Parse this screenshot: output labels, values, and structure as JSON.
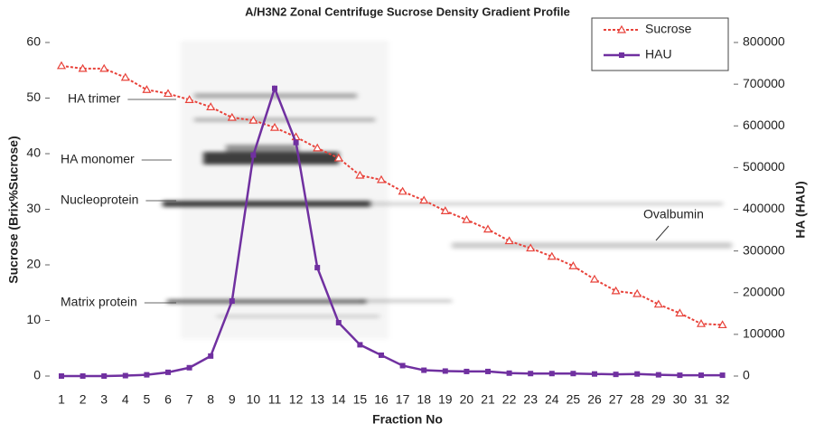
{
  "chart_data": {
    "type": "line",
    "title": "A/H3N2 Zonal Centrifuge Sucrose Density Gradient Profile",
    "x_label": "Fraction No",
    "y_label": "Sucrose (Brix%Sucrose)",
    "y2_label": "HA (HAU)",
    "categories": [
      "1",
      "2",
      "3",
      "4",
      "5",
      "6",
      "7",
      "8",
      "9",
      "10",
      "11",
      "12",
      "13",
      "14",
      "15",
      "16",
      "17",
      "18",
      "19",
      "20",
      "21",
      "22",
      "23",
      "24",
      "25",
      "26",
      "27",
      "28",
      "29",
      "30",
      "31",
      "32"
    ],
    "ylim": [
      0,
      60
    ],
    "yticks": [
      0,
      10,
      20,
      30,
      40,
      50,
      60
    ],
    "y2lim": [
      0,
      800000
    ],
    "y2ticks": [
      0,
      100000,
      200000,
      300000,
      400000,
      500000,
      600000,
      700000,
      800000
    ],
    "legend": "top-right",
    "series": [
      {
        "name": "Sucrose",
        "color": "#e8423a",
        "values": [
          55.8,
          55.3,
          55.3,
          53.7,
          51.5,
          50.8,
          49.7,
          48.4,
          46.5,
          46.0,
          44.7,
          43.0,
          41.0,
          39.2,
          36.1,
          35.3,
          33.2,
          31.6,
          29.7,
          28.1,
          26.4,
          24.3,
          23.0,
          21.5,
          19.8,
          17.4,
          15.3,
          14.8,
          12.9,
          11.3,
          9.4,
          9.2
        ]
      },
      {
        "name": "HAU",
        "color": "#7030a0",
        "axis": "y2",
        "values": [
          0,
          0,
          0,
          1000,
          3000,
          9000,
          20000,
          48000,
          180000,
          530000,
          690000,
          560000,
          260000,
          128000,
          75000,
          50000,
          25000,
          14000,
          12000,
          11000,
          11000,
          7000,
          6000,
          6000,
          6000,
          5000,
          4000,
          5000,
          3000,
          2000,
          2000,
          2000
        ]
      }
    ],
    "annotations": [
      "HA trimer",
      "HA monomer",
      "Nucleoprotein",
      "Matrix protein",
      "Ovalbumin"
    ]
  }
}
